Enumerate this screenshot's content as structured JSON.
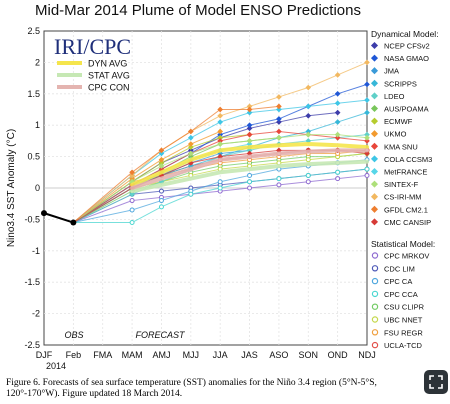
{
  "chart_data": {
    "type": "line",
    "title": "Mid-Mar 2014 Plume of Model ENSO Predictions",
    "ylabel": "Nino3.4 SST Anomaly (°C)",
    "ylim": [
      -2.5,
      2.5
    ],
    "yticks": [
      "-2.5",
      "-2",
      "-1.5",
      "-1",
      "-0.5",
      "0",
      "0.5",
      "1",
      "1.5",
      "2",
      "2.5"
    ],
    "categories": [
      "DJF",
      "Feb",
      "FMA",
      "MAM",
      "AMJ",
      "MJJ",
      "JJA",
      "JAS",
      "ASO",
      "SON",
      "OND",
      "NDJ"
    ],
    "year_label": "2014",
    "obs_label": "OBS",
    "forecast_label": "FORECAST",
    "logo_text": "IRI/CPC",
    "observed": {
      "name": "OBS",
      "color": "#000000",
      "values": [
        -0.4,
        -0.55
      ]
    },
    "averages": [
      {
        "name": "DYN AVG",
        "color": "#f5e54c",
        "values": [
          0.05,
          0.25,
          0.45,
          0.6,
          0.65,
          0.68,
          0.7,
          0.68,
          0.65
        ]
      },
      {
        "name": "STAT AVG",
        "color": "#c6e8b4",
        "values": [
          -0.05,
          0.05,
          0.15,
          0.25,
          0.3,
          0.35,
          0.38,
          0.4,
          0.42
        ]
      },
      {
        "name": "CPC CON",
        "color": "#e4b4b0",
        "values": [
          0.0,
          0.15,
          0.3,
          0.45,
          0.5,
          0.55,
          0.58,
          0.6,
          0.6
        ]
      }
    ],
    "dynamical_label": "Dynamical Model:",
    "statistical_label": "Statistical Model:",
    "dynamical": [
      {
        "name": "NCEP CFSv2",
        "color": "#3d3daa",
        "values": [
          0.1,
          0.4,
          0.6,
          0.8,
          0.95,
          1.05,
          1.15,
          1.2
        ]
      },
      {
        "name": "NASA GMAO",
        "color": "#1f57d6",
        "values": [
          0.05,
          0.3,
          0.55,
          0.85,
          1.0,
          1.1,
          1.3,
          1.5,
          1.65
        ]
      },
      {
        "name": "JMA",
        "color": "#3a9ad8",
        "values": [
          0.0,
          0.2,
          0.4,
          0.55,
          0.6
        ]
      },
      {
        "name": "SCRIPPS",
        "color": "#37b7d8",
        "values": [
          0.05,
          0.2,
          0.35,
          0.5,
          0.65,
          0.8,
          0.9,
          1.05,
          1.2
        ]
      },
      {
        "name": "LDEO",
        "color": "#5fd0c8",
        "values": [
          -0.1,
          0.1,
          0.3,
          0.5,
          0.6,
          0.7,
          0.75,
          0.8,
          0.85
        ]
      },
      {
        "name": "AUS/POAMA",
        "color": "#79c65b",
        "values": [
          0.0,
          0.25,
          0.5,
          0.7,
          0.75,
          0.8
        ]
      },
      {
        "name": "ECMWF",
        "color": "#b6cc2e",
        "values": [
          0.1,
          0.4,
          0.65,
          0.8,
          0.85
        ]
      },
      {
        "name": "UKMO",
        "color": "#f29a2e",
        "values": [
          0.15,
          0.45,
          0.7,
          0.9
        ]
      },
      {
        "name": "KMA SNU",
        "color": "#e8463a",
        "values": [
          0.05,
          0.3,
          0.55,
          0.75,
          0.85,
          0.9,
          0.85,
          0.8,
          0.75
        ]
      },
      {
        "name": "COLA CCSM3",
        "color": "#3ec6e6",
        "values": [
          0.2,
          0.55,
          0.8,
          1.05,
          1.2,
          1.25,
          1.3,
          1.35,
          1.4
        ]
      },
      {
        "name": "MetFRANCE",
        "color": "#57d6e8",
        "values": [
          0.0,
          0.2,
          0.45,
          0.6,
          0.7
        ]
      },
      {
        "name": "SINTEX-F",
        "color": "#aee07a",
        "values": [
          0.1,
          0.35,
          0.55,
          0.7,
          0.75,
          0.8,
          0.85,
          0.85,
          0.8
        ]
      },
      {
        "name": "CS-IRI-MM",
        "color": "#f2b860",
        "values": [
          0.2,
          0.6,
          0.9,
          1.15,
          1.3,
          1.45,
          1.6,
          1.8,
          2.0
        ]
      },
      {
        "name": "GFDL CM2.1",
        "color": "#ee7e30",
        "values": [
          0.25,
          0.6,
          0.9,
          1.25,
          1.25,
          1.3
        ]
      },
      {
        "name": "CMC CANSIP",
        "color": "#d63a36",
        "values": [
          0.0,
          0.2,
          0.4,
          0.5,
          0.55,
          0.6,
          0.6,
          0.6,
          0.55
        ]
      }
    ],
    "statistical": [
      {
        "name": "CPC MRKOV",
        "color": "#8e6ad0",
        "values": [
          -0.2,
          -0.15,
          -0.1,
          -0.05,
          0.0,
          0.05,
          0.1,
          0.15,
          0.2
        ]
      },
      {
        "name": "CDC LIM",
        "color": "#4e5ab8",
        "values": [
          -0.1,
          -0.05,
          0.0,
          0.05,
          0.1,
          0.15,
          0.2,
          0.25,
          0.3
        ]
      },
      {
        "name": "CPC CA",
        "color": "#4fa7de",
        "values": [
          -0.35,
          -0.2,
          -0.05,
          0.1,
          0.2,
          0.3,
          0.35,
          0.4,
          0.45
        ]
      },
      {
        "name": "CPC CCA",
        "color": "#4ad6d0",
        "values": [
          -0.55,
          -0.3,
          -0.1,
          0.0,
          0.1,
          0.15,
          0.2,
          0.25,
          0.3
        ]
      },
      {
        "name": "CSU CLIPR",
        "color": "#74cc66",
        "values": [
          -0.05,
          0.1,
          0.25,
          0.35,
          0.4,
          0.45,
          0.5,
          0.5,
          0.55
        ]
      },
      {
        "name": "UBC NNET",
        "color": "#c4d84a",
        "values": [
          0.0,
          0.1,
          0.2,
          0.3,
          0.35,
          0.4,
          0.45,
          0.5,
          0.55
        ]
      },
      {
        "name": "FSU REGR",
        "color": "#f0a040",
        "values": [
          0.1,
          0.2,
          0.3,
          0.4,
          0.45,
          0.5,
          0.55,
          0.55,
          0.6
        ]
      },
      {
        "name": "UCLA-TCD",
        "color": "#e2504a",
        "values": [
          0.0,
          0.2,
          0.35,
          0.45,
          0.5,
          0.55,
          0.6,
          0.6,
          0.6
        ]
      }
    ]
  },
  "caption": "Figure 6. Forecasts of sea surface temperature (SST) anomalies for the Niño 3.4 region (5°N-5°S, 120°-170°W).  Figure updated 18 March 2014.",
  "fullscreen_icon": "expand-icon"
}
